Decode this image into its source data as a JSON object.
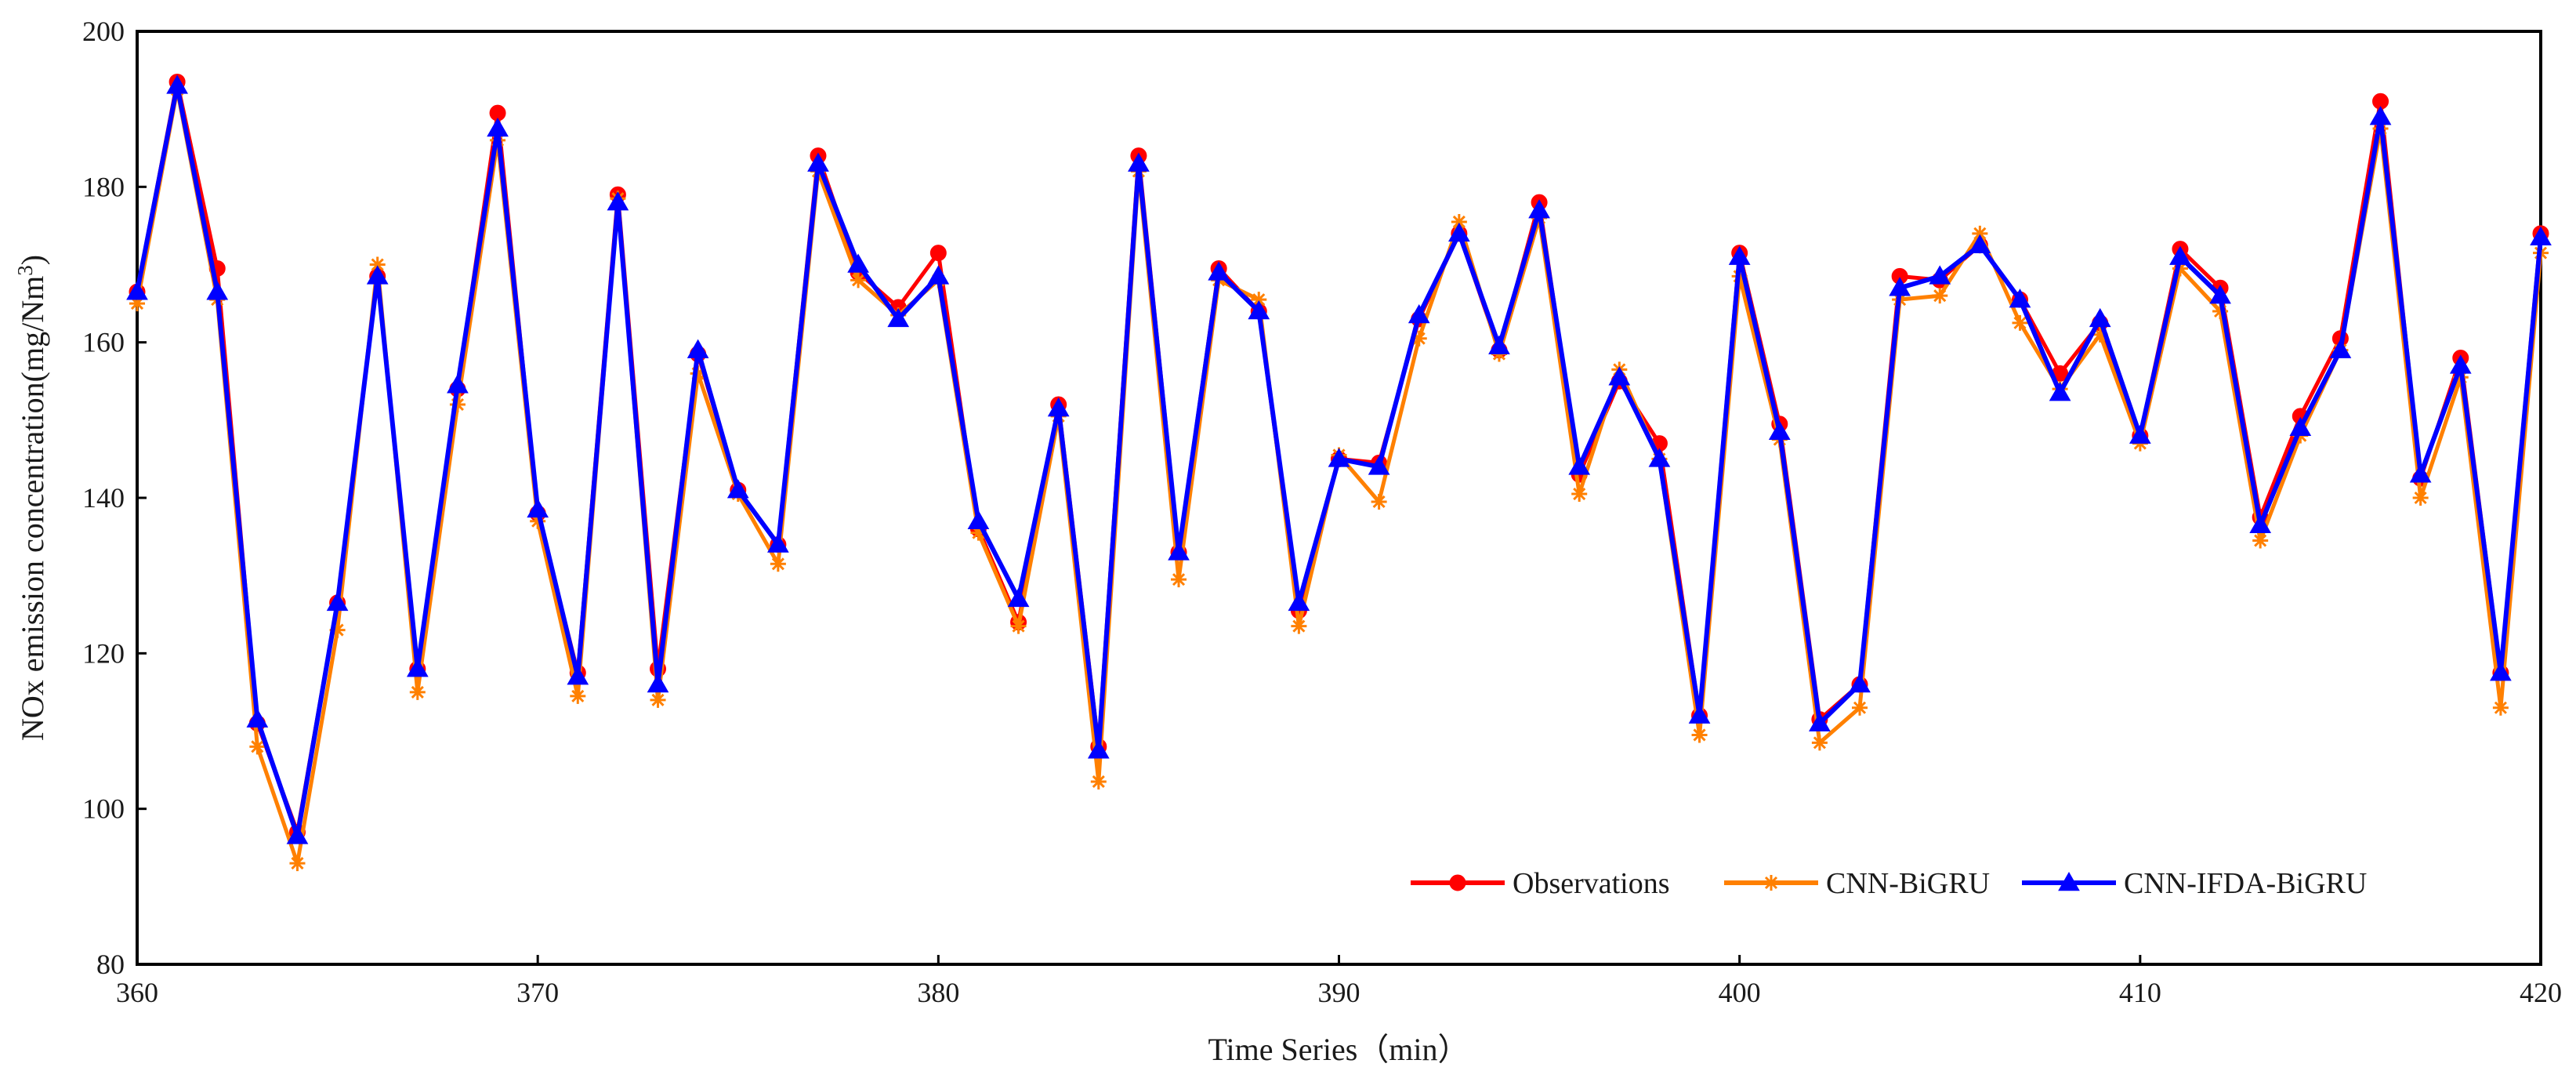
{
  "chart_data": {
    "type": "line",
    "title": "",
    "xlabel": "Time Series（min）",
    "ylabel_main": "NOx emission concentration(mg/Nm",
    "ylabel_sup": "3",
    "ylabel_tail": ")",
    "xlim": [
      360,
      420
    ],
    "ylim": [
      80,
      200
    ],
    "xticks": [
      360,
      370,
      380,
      390,
      400,
      410,
      420
    ],
    "yticks": [
      80,
      100,
      120,
      140,
      160,
      180,
      200
    ],
    "grid": false,
    "legend_position": "bottom-right",
    "x": [
      360,
      361,
      362,
      363,
      364,
      365,
      366,
      367,
      368,
      369,
      370,
      371,
      372,
      373,
      374,
      375,
      376,
      377,
      378,
      379,
      380,
      381,
      382,
      383,
      384,
      385,
      386,
      387,
      388,
      389,
      390,
      391,
      392,
      393,
      394,
      395,
      396,
      397,
      398,
      399,
      400,
      401,
      402,
      403,
      404,
      405,
      406,
      407,
      408,
      409,
      410,
      411,
      412,
      413,
      414,
      415,
      416,
      417,
      418,
      419,
      420
    ],
    "series": [
      {
        "name": "Observations",
        "color": "#ff0000",
        "marker": "circle",
        "values": [
          166.5,
          193.5,
          169.5,
          111,
          97,
          126.5,
          168.5,
          118,
          154,
          189.5,
          138,
          117.5,
          179,
          118,
          158.5,
          141,
          134,
          184,
          169,
          164.5,
          171.5,
          136,
          124,
          152,
          108,
          184,
          133,
          169.5,
          164,
          125.5,
          145,
          144.5,
          163,
          174,
          159,
          178,
          143,
          155,
          147,
          112,
          171.5,
          149.5,
          111.5,
          116,
          168.5,
          168,
          172.5,
          165.5,
          156,
          162.5,
          148,
          172,
          167,
          137.5,
          150.5,
          160.5,
          191,
          142.5,
          158,
          117.5,
          174
        ]
      },
      {
        "name": "CNN-BiGRU",
        "color": "#ff8000",
        "marker": "asterisk",
        "values": [
          165,
          192.5,
          165.5,
          108,
          93,
          123,
          170,
          115,
          152,
          186,
          137,
          114.5,
          178.5,
          114,
          156,
          140.5,
          131.5,
          182,
          168,
          163.5,
          168,
          135.5,
          123.5,
          150.5,
          103.5,
          182,
          129.5,
          168,
          165.5,
          123.5,
          145.5,
          139.5,
          160.5,
          175.5,
          158.5,
          176,
          140.5,
          156.5,
          145,
          109.5,
          168.5,
          147.5,
          108.5,
          113,
          165.5,
          166,
          174,
          162.5,
          154,
          161,
          147,
          169.5,
          164,
          134.5,
          148,
          159,
          187.5,
          140,
          155.5,
          113,
          171.5
        ]
      },
      {
        "name": "CNN-IFDA-BiGRU",
        "color": "#0000ff",
        "marker": "triangle",
        "values": [
          166.5,
          193,
          166.5,
          111.5,
          96.5,
          126.5,
          168.5,
          118,
          154.5,
          187.5,
          138.5,
          117,
          178,
          116,
          159,
          141,
          134,
          183,
          170,
          163,
          168.5,
          137,
          127,
          151.5,
          107.5,
          183,
          133,
          169,
          164,
          126.5,
          145,
          144,
          163.5,
          174,
          159.5,
          177,
          144,
          155.5,
          145,
          112,
          171,
          148.5,
          111,
          116,
          167,
          168.5,
          172.5,
          165.5,
          153.5,
          163,
          148,
          171,
          166,
          136.5,
          149,
          159,
          189,
          143,
          157,
          117.5,
          173.5
        ]
      }
    ]
  }
}
